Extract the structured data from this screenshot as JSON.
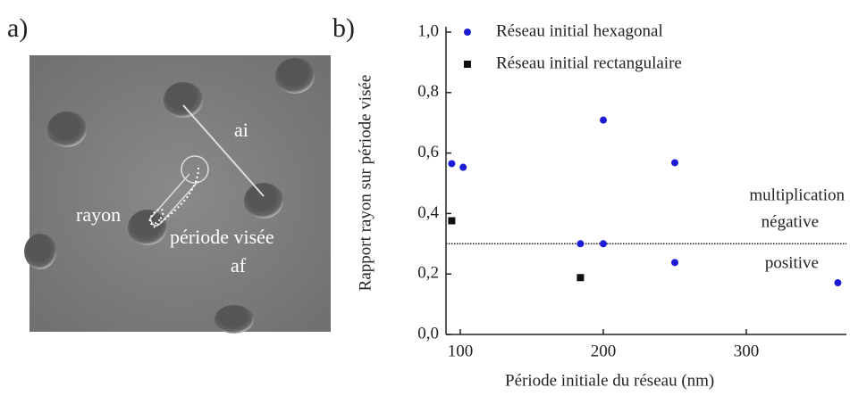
{
  "image_panel": {
    "label": "a)",
    "annotations": [
      "ai",
      "rayon",
      "période visée",
      "af"
    ]
  },
  "chart_data": {
    "type": "scatter",
    "panel_label": "b)",
    "x_label": "Période initiale du réseau (nm)",
    "y_label": "Rapport rayon sur période visée",
    "xlim": [
      90,
      370
    ],
    "ylim": [
      0,
      1
    ],
    "xticks": [
      100,
      200,
      300
    ],
    "yticks": [
      {
        "value": 0,
        "label": "0,0"
      },
      {
        "value": 0.2,
        "label": "0,2"
      },
      {
        "value": 0.4,
        "label": "0,4"
      },
      {
        "value": 0.6,
        "label": "0,6"
      },
      {
        "value": 0.8,
        "label": "0,8"
      },
      {
        "value": 1,
        "label": "1,0"
      }
    ],
    "series": [
      {
        "name": "Réseau initial hexagonal",
        "color": "#1c1cd6",
        "marker": "circle",
        "x": [
          94,
          102,
          200,
          184,
          200,
          250,
          250,
          364
        ],
        "values": [
          0.565,
          0.553,
          0.709,
          0.3,
          0.3,
          0.568,
          0.238,
          0.171
        ]
      },
      {
        "name": "Réseau initial rectangulaire",
        "color": "#111111",
        "marker": "square",
        "x": [
          94,
          184
        ],
        "values": [
          0.376,
          0.188
        ]
      }
    ],
    "reference_line": 0.3,
    "annotations": [
      "multiplication",
      "négative",
      "positive"
    ],
    "legend": "upper-left"
  }
}
